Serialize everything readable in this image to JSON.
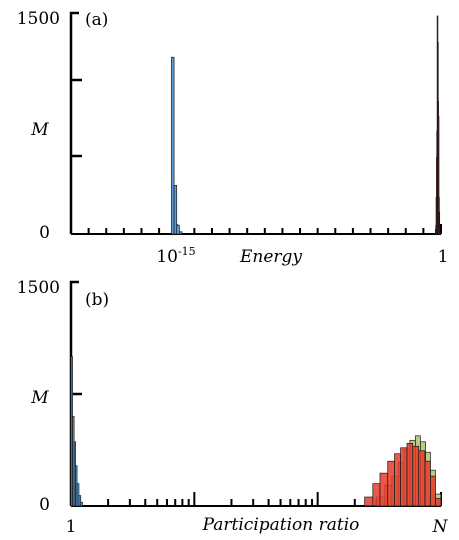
{
  "chart_data": [
    {
      "type": "bar",
      "panel_label": "(a)",
      "xlabel": "Energy",
      "ylabel": "M",
      "x_scale": "log",
      "xlim": [
        "10^-21",
        "1"
      ],
      "x_tick_labels": [
        {
          "base": "10",
          "exp": "-15"
        },
        {
          "base": "1",
          "exp": ""
        }
      ],
      "ylim": [
        0,
        1500
      ],
      "y_tick_labels": [
        "0",
        "1500"
      ],
      "grid": false,
      "series": [
        {
          "color": "#5b9bd5",
          "bins": [
            {
              "x0": "10^-15.3",
              "x1": "10^-15.15",
              "count": 1200
            },
            {
              "x0": "10^-15.15",
              "x1": "10^-15.0",
              "count": 330
            },
            {
              "x0": "10^-15.0",
              "x1": "10^-14.85",
              "count": 60
            },
            {
              "x0": "10^-14.85",
              "x1": "10^-14.7",
              "count": 15
            }
          ]
        },
        {
          "color": "#a8c66c",
          "bins": [
            {
              "x0": "10^-0.32",
              "x1": "10^-0.28",
              "count": 30
            },
            {
              "x0": "10^-0.28",
              "x1": "10^-0.24",
              "count": 250
            },
            {
              "x0": "10^-0.24",
              "x1": "10^-0.20",
              "count": 700
            },
            {
              "x0": "10^-0.20",
              "x1": "10^-0.16",
              "count": 1300
            },
            {
              "x0": "10^-0.16",
              "x1": "10^-0.12",
              "count": 800
            },
            {
              "x0": "10^-0.12",
              "x1": "10^-0.08",
              "count": 150
            }
          ]
        },
        {
          "color": "#e8392b",
          "bins": [
            {
              "x0": "10^-0.30",
              "x1": "10^-0.26",
              "count": 60
            },
            {
              "x0": "10^-0.26",
              "x1": "10^-0.22",
              "count": 520
            },
            {
              "x0": "10^-0.22",
              "x1": "10^-0.18",
              "count": 1480
            },
            {
              "x0": "10^-0.18",
              "x1": "10^-0.14",
              "count": 900
            },
            {
              "x0": "10^-0.14",
              "x1": "10^-0.10",
              "count": 250
            },
            {
              "x0": "10^-0.10",
              "x1": "10^-0.06",
              "count": 40
            }
          ]
        }
      ]
    },
    {
      "type": "bar",
      "panel_label": "(b)",
      "xlabel": "Participation ratio",
      "ylabel": "M",
      "x_scale": "log",
      "xlim": [
        "1",
        "N"
      ],
      "x_tick_labels": [
        {
          "base": "1",
          "exp": ""
        },
        {
          "base": "N",
          "exp": ""
        }
      ],
      "ylim": [
        0,
        1500
      ],
      "y_tick_labels": [
        "0",
        "1500"
      ],
      "grid": false,
      "series": [
        {
          "color": "#5b9bd5",
          "bins": [
            {
              "x0": 1.0,
              "x1": 1.03,
              "count": 1000
            },
            {
              "x0": 1.03,
              "x1": 1.06,
              "count": 600
            },
            {
              "x0": 1.06,
              "x1": 1.09,
              "count": 430
            },
            {
              "x0": 1.09,
              "x1": 1.12,
              "count": 270
            },
            {
              "x0": 1.12,
              "x1": 1.16,
              "count": 150
            },
            {
              "x0": 1.16,
              "x1": 1.2,
              "count": 70
            },
            {
              "x0": 1.2,
              "x1": 1.24,
              "count": 25
            }
          ]
        },
        {
          "color": "#a8c66c",
          "bins": [
            {
              "x0": "0.30N",
              "x1": "0.35N",
              "count": 60
            },
            {
              "x0": "0.35N",
              "x1": "0.40N",
              "count": 140
            },
            {
              "x0": "0.40N",
              "x1": "0.45N",
              "count": 200
            },
            {
              "x0": "0.45N",
              "x1": "0.50N",
              "count": 290
            },
            {
              "x0": "0.50N",
              "x1": "0.56N",
              "count": 380
            },
            {
              "x0": "0.56N",
              "x1": "0.62N",
              "count": 440
            },
            {
              "x0": "0.62N",
              "x1": "0.68N",
              "count": 470
            },
            {
              "x0": "0.68N",
              "x1": "0.75N",
              "count": 430
            },
            {
              "x0": "0.75N",
              "x1": "0.82N",
              "count": 360
            },
            {
              "x0": "0.82N",
              "x1": "0.90N",
              "count": 240
            },
            {
              "x0": "0.90N",
              "x1": "N",
              "count": 80
            }
          ]
        },
        {
          "color": "#e8392b",
          "bins": [
            {
              "x0": "0.24N",
              "x1": "0.28N",
              "count": 60
            },
            {
              "x0": "0.28N",
              "x1": "0.32N",
              "count": 150
            },
            {
              "x0": "0.32N",
              "x1": "0.37N",
              "count": 220
            },
            {
              "x0": "0.37N",
              "x1": "0.42N",
              "count": 300
            },
            {
              "x0": "0.42N",
              "x1": "0.47N",
              "count": 350
            },
            {
              "x0": "0.47N",
              "x1": "0.53N",
              "count": 390
            },
            {
              "x0": "0.53N",
              "x1": "0.59N",
              "count": 420
            },
            {
              "x0": "0.59N",
              "x1": "0.66N",
              "count": 400
            },
            {
              "x0": "0.66N",
              "x1": "0.74N",
              "count": 370
            },
            {
              "x0": "0.74N",
              "x1": "0.82N",
              "count": 300
            },
            {
              "x0": "0.82N",
              "x1": "0.90N",
              "count": 200
            },
            {
              "x0": "0.90N",
              "x1": "N",
              "count": 50
            }
          ]
        }
      ]
    }
  ]
}
